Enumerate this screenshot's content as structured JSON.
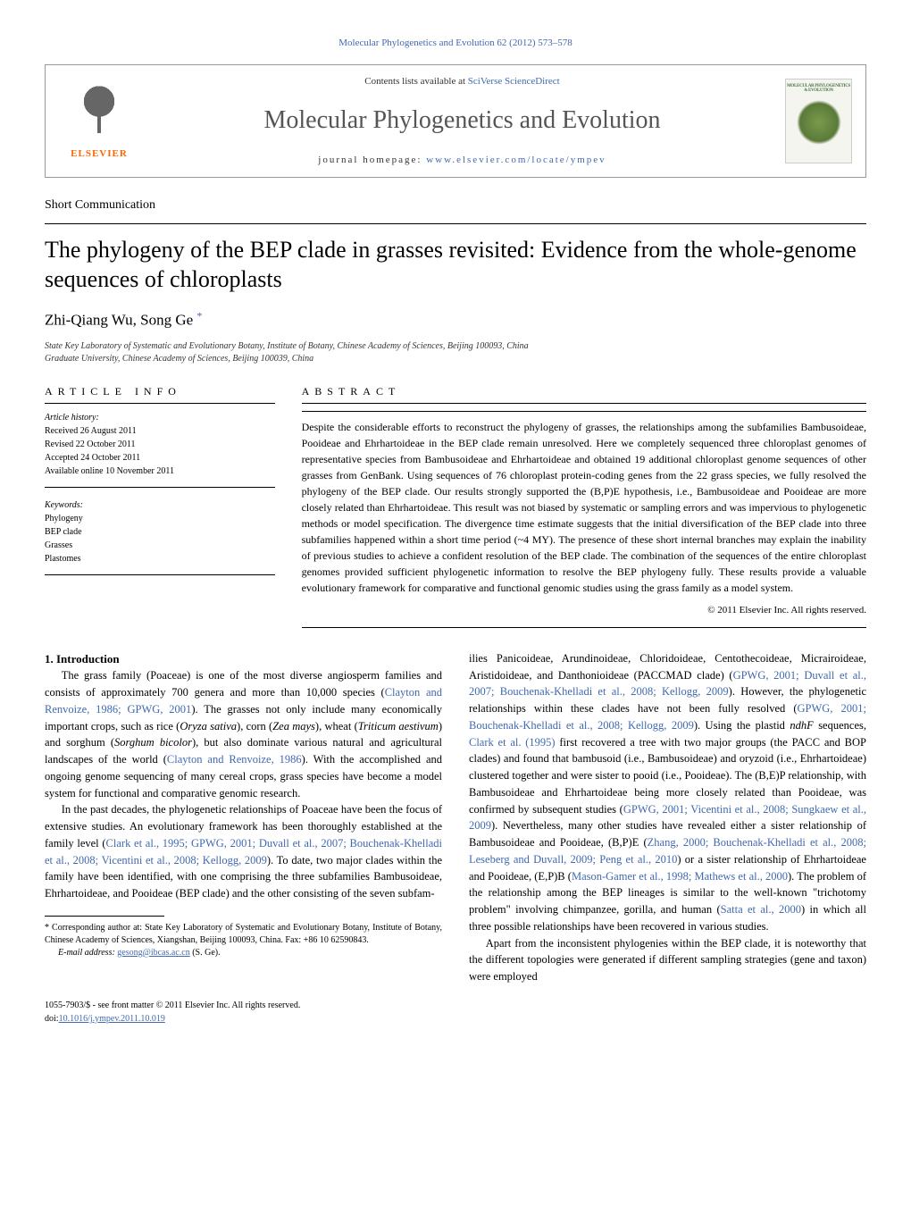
{
  "top_citation": "Molecular Phylogenetics and Evolution 62 (2012) 573–578",
  "header": {
    "contents_prefix": "Contents lists available at ",
    "contents_link": "SciVerse ScienceDirect",
    "journal_name": "Molecular Phylogenetics and Evolution",
    "homepage_prefix": "journal homepage: ",
    "homepage_link": "www.elsevier.com/locate/ympev",
    "elsevier_label": "ELSEVIER",
    "cover_title": "MOLECULAR PHYLOGENETICS & EVOLUTION"
  },
  "article_type": "Short Communication",
  "title": "The phylogeny of the BEP clade in grasses revisited: Evidence from the whole-genome sequences of chloroplasts",
  "authors": "Zhi-Qiang Wu, Song Ge",
  "corr_symbol": "*",
  "affiliations": {
    "line1": "State Key Laboratory of Systematic and Evolutionary Botany, Institute of Botany, Chinese Academy of Sciences, Beijing 100093, China",
    "line2": "Graduate University, Chinese Academy of Sciences, Beijing 100039, China"
  },
  "info": {
    "header": "ARTICLE INFO",
    "history_label": "Article history:",
    "received": "Received 26 August 2011",
    "revised": "Revised 22 October 2011",
    "accepted": "Accepted 24 October 2011",
    "online": "Available online 10 November 2011",
    "keywords_label": "Keywords:",
    "kw1": "Phylogeny",
    "kw2": "BEP clade",
    "kw3": "Grasses",
    "kw4": "Plastomes"
  },
  "abstract": {
    "header": "ABSTRACT",
    "text": "Despite the considerable efforts to reconstruct the phylogeny of grasses, the relationships among the subfamilies Bambusoideae, Pooideae and Ehrhartoideae in the BEP clade remain unresolved. Here we completely sequenced three chloroplast genomes of representative species from Bambusoideae and Ehrhartoideae and obtained 19 additional chloroplast genome sequences of other grasses from GenBank. Using sequences of 76 chloroplast protein-coding genes from the 22 grass species, we fully resolved the phylogeny of the BEP clade. Our results strongly supported the (B,P)E hypothesis, i.e., Bambusoideae and Pooideae are more closely related than Ehrhartoideae. This result was not biased by systematic or sampling errors and was impervious to phylogenetic methods or model specification. The divergence time estimate suggests that the initial diversification of the BEP clade into three subfamilies happened within a short time period (~4 MY). The presence of these short internal branches may explain the inability of previous studies to achieve a confident resolution of the BEP clade. The combination of the sequences of the entire chloroplast genomes provided sufficient phylogenetic information to resolve the BEP phylogeny fully. These results provide a valuable evolutionary framework for comparative and functional genomic studies using the grass family as a model system.",
    "copyright": "© 2011 Elsevier Inc. All rights reserved."
  },
  "intro": {
    "heading": "1. Introduction"
  },
  "footnote": {
    "corr": "* Corresponding author at: State Key Laboratory of Systematic and Evolutionary Botany, Institute of Botany, Chinese Academy of Sciences, Xiangshan, Beijing 100093, China. Fax: +86 10 62590843.",
    "email_label": "E-mail address: ",
    "email": "gesong@ibcas.ac.cn",
    "email_suffix": " (S. Ge)."
  },
  "footer": {
    "line1": "1055-7903/$ - see front matter © 2011 Elsevier Inc. All rights reserved.",
    "doi_prefix": "doi:",
    "doi": "10.1016/j.ympev.2011.10.019"
  },
  "colors": {
    "link": "#4169b0",
    "elsevier_orange": "#ff6600",
    "text": "#000000",
    "background": "#ffffff",
    "cover_green": "#4a7740"
  }
}
